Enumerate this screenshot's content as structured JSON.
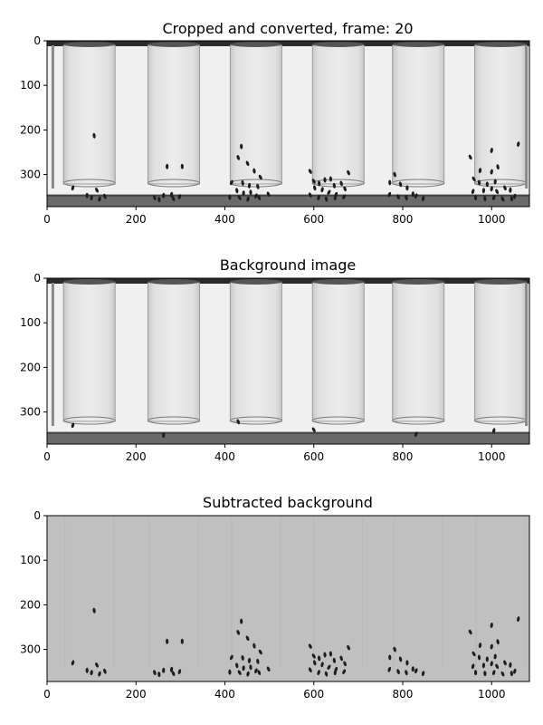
{
  "figure": {
    "panels": [
      {
        "title": "Cropped and converted, frame: 20",
        "kind": "frame",
        "xticks": [
          "0",
          "200",
          "400",
          "600",
          "800",
          "1000"
        ],
        "yticks": [
          "0",
          "100",
          "200",
          "300"
        ]
      },
      {
        "title": "Background image",
        "kind": "background",
        "xticks": [
          "0",
          "200",
          "400",
          "600",
          "800",
          "1000"
        ],
        "yticks": [
          "0",
          "100",
          "200",
          "300"
        ]
      },
      {
        "title": "Subtracted background",
        "kind": "subtracted",
        "xticks": [
          "0",
          "200",
          "400",
          "600",
          "800",
          "1000"
        ],
        "yticks": [
          "0",
          "100",
          "200",
          "300"
        ]
      }
    ],
    "image_extent": {
      "x": [
        0,
        1085
      ],
      "y": [
        372,
        0
      ]
    },
    "colors": {
      "backdrop": "#f0f0f0",
      "tube_band": "#cfcfcf",
      "shelf": "#6a6a6a",
      "fly": "#1e1e1e",
      "subtracted_bg": "#c0c0c0"
    },
    "tubes_x_center": [
      95,
      285,
      470,
      655,
      835,
      1020
    ],
    "flies": [
      [
        106,
        213
      ],
      [
        58,
        330
      ],
      [
        112,
        335
      ],
      [
        90,
        347
      ],
      [
        100,
        352
      ],
      [
        118,
        355
      ],
      [
        130,
        349
      ],
      [
        270,
        282
      ],
      [
        304,
        282
      ],
      [
        242,
        352
      ],
      [
        262,
        347
      ],
      [
        280,
        345
      ],
      [
        298,
        350
      ],
      [
        252,
        356
      ],
      [
        284,
        354
      ],
      [
        437,
        237
      ],
      [
        430,
        262
      ],
      [
        451,
        275
      ],
      [
        466,
        292
      ],
      [
        480,
        306
      ],
      [
        415,
        318
      ],
      [
        440,
        319
      ],
      [
        455,
        325
      ],
      [
        474,
        327
      ],
      [
        427,
        336
      ],
      [
        442,
        342
      ],
      [
        458,
        340
      ],
      [
        470,
        348
      ],
      [
        433,
        352
      ],
      [
        452,
        355
      ],
      [
        477,
        352
      ],
      [
        498,
        344
      ],
      [
        411,
        351
      ],
      [
        592,
        293
      ],
      [
        600,
        315
      ],
      [
        612,
        320
      ],
      [
        625,
        312
      ],
      [
        638,
        310
      ],
      [
        646,
        325
      ],
      [
        662,
        320
      ],
      [
        678,
        296
      ],
      [
        602,
        330
      ],
      [
        619,
        334
      ],
      [
        634,
        340
      ],
      [
        650,
        345
      ],
      [
        670,
        332
      ],
      [
        592,
        346
      ],
      [
        611,
        352
      ],
      [
        628,
        355
      ],
      [
        648,
        352
      ],
      [
        668,
        350
      ],
      [
        782,
        300
      ],
      [
        771,
        318
      ],
      [
        795,
        322
      ],
      [
        810,
        330
      ],
      [
        823,
        344
      ],
      [
        790,
        350
      ],
      [
        808,
        352
      ],
      [
        830,
        348
      ],
      [
        846,
        354
      ],
      [
        770,
        345
      ],
      [
        952,
        261
      ],
      [
        974,
        291
      ],
      [
        1000,
        294
      ],
      [
        1014,
        283
      ],
      [
        1008,
        316
      ],
      [
        972,
        318
      ],
      [
        990,
        322
      ],
      [
        1000,
        332
      ],
      [
        958,
        338
      ],
      [
        982,
        336
      ],
      [
        1012,
        338
      ],
      [
        1030,
        330
      ],
      [
        1042,
        335
      ],
      [
        1052,
        349
      ],
      [
        964,
        352
      ],
      [
        985,
        354
      ],
      [
        1005,
        352
      ],
      [
        1025,
        355
      ],
      [
        1045,
        354
      ],
      [
        1060,
        232
      ],
      [
        1000,
        246
      ],
      [
        960,
        310
      ]
    ]
  }
}
